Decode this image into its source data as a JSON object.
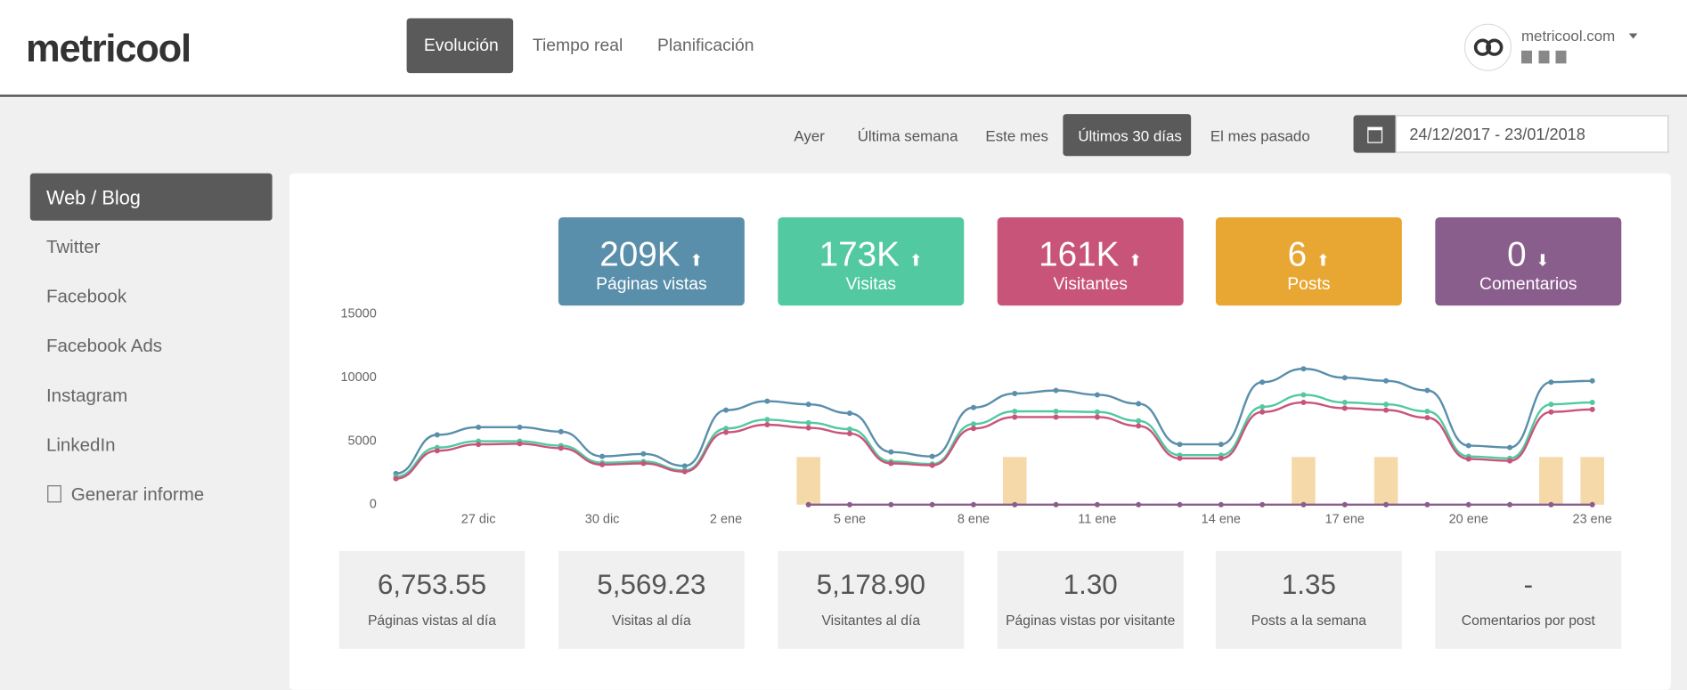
{
  "header": {
    "logo": "metricool",
    "nav": [
      "Evolución",
      "Tiempo real",
      "Planificación"
    ],
    "account": "metricool.com"
  },
  "date_filters": [
    "Ayer",
    "Última semana",
    "Este mes",
    "Últimos 30 días",
    "El mes pasado"
  ],
  "date_range": "24/12/2017 - 23/01/2018",
  "sidebar": [
    "Web / Blog",
    "Twitter",
    "Facebook",
    "Facebook Ads",
    "Instagram",
    "LinkedIn",
    "Generar informe"
  ],
  "kpis": [
    {
      "value": "209K",
      "label": "Páginas vistas"
    },
    {
      "value": "173K",
      "label": "Visitas"
    },
    {
      "value": "161K",
      "label": "Visitantes"
    },
    {
      "value": "6",
      "label": "Posts"
    },
    {
      "value": "0",
      "label": "Comentarios"
    }
  ],
  "chart_data": {
    "type": "line",
    "categories": [
      null,
      null,
      "27 dic",
      null,
      null,
      "30 dic",
      null,
      null,
      "2 ene",
      null,
      null,
      "5 ene",
      null,
      null,
      "8 ene",
      null,
      null,
      "11 ene",
      null,
      null,
      "14 ene",
      null,
      null,
      "17 ene",
      null,
      null,
      "20 ene",
      null,
      null,
      "23 ene"
    ],
    "ylim": [
      0,
      15000
    ],
    "yticks": [
      0,
      5000,
      10000,
      15000
    ],
    "y2lim": [
      0,
      4
    ],
    "series": [
      {
        "name": "Páginas vistas",
        "color": "#5a8fab",
        "values": [
          2450,
          5500,
          6100,
          6100,
          5750,
          3800,
          4000,
          3050,
          7450,
          8150,
          7900,
          7200,
          4150,
          3800,
          7650,
          8750,
          9000,
          8650,
          7950,
          4750,
          4750,
          9650,
          10700,
          10000,
          9750,
          9000,
          4650,
          4500,
          9650,
          9750
        ]
      },
      {
        "name": "Visitas",
        "color": "#52c9a0",
        "values": [
          2200,
          4500,
          5000,
          5000,
          4650,
          3300,
          3400,
          2700,
          6000,
          6700,
          6450,
          5950,
          3400,
          3200,
          6350,
          7350,
          7350,
          7300,
          6600,
          3900,
          3900,
          7700,
          8650,
          8050,
          7900,
          7350,
          3800,
          3650,
          7900,
          8050
        ]
      },
      {
        "name": "Visitantes",
        "color": "#c9547a",
        "values": [
          2050,
          4250,
          4750,
          4800,
          4450,
          3150,
          3250,
          2600,
          5700,
          6300,
          6050,
          5600,
          3250,
          3100,
          6000,
          6900,
          6900,
          6900,
          6200,
          3650,
          3650,
          7300,
          8050,
          7600,
          7450,
          6850,
          3600,
          3450,
          7300,
          7500
        ]
      },
      {
        "name": "Posts",
        "type": "bar",
        "axis": "y2",
        "color": "#f5d9a8",
        "values": [
          0,
          0,
          0,
          0,
          0,
          0,
          0,
          0,
          0,
          0,
          1,
          0,
          0,
          0,
          0,
          1,
          0,
          0,
          0,
          0,
          0,
          0,
          1,
          0,
          1,
          0,
          0,
          0,
          1,
          1
        ]
      },
      {
        "name": "Comentarios",
        "color": "#8a5e8c",
        "values": [
          null,
          null,
          null,
          null,
          null,
          null,
          null,
          null,
          null,
          null,
          0,
          0,
          0,
          0,
          0,
          0,
          0,
          0,
          0,
          0,
          0,
          0,
          0,
          0,
          0,
          0,
          0,
          0,
          0,
          0
        ]
      }
    ]
  },
  "stats": [
    {
      "value": "6,753.55",
      "label": "Páginas vistas al día"
    },
    {
      "value": "5,569.23",
      "label": "Visitas al día"
    },
    {
      "value": "5,178.90",
      "label": "Visitantes al día"
    },
    {
      "value": "1.30",
      "label": "Páginas vistas por visitante"
    },
    {
      "value": "1.35",
      "label": "Posts a la semana"
    },
    {
      "value": "-",
      "label": "Comentarios por post"
    }
  ]
}
